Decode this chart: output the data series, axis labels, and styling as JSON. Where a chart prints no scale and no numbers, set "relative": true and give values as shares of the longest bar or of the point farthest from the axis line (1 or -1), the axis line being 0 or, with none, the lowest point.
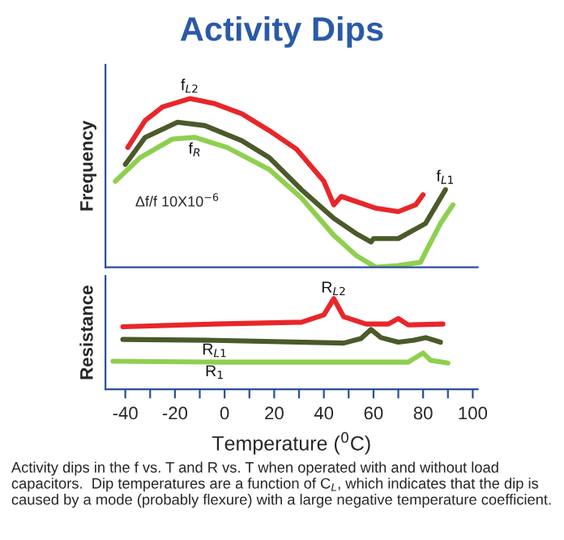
{
  "chart_data": [
    {
      "type": "line",
      "title": "Activity Dips",
      "ylabel": "Frequency",
      "relative": true,
      "legend": false,
      "grid": false,
      "tick_labels": false,
      "xlim": [
        -48,
        102
      ],
      "annotations": [
        "Δf/f 10X10$^{−6}$"
      ],
      "series": [
        {
          "name": "f$_{L2}$",
          "color": "#e8262a",
          "x": [
            -39,
            -32,
            -25,
            -14,
            -4,
            7,
            18,
            29,
            40,
            44,
            47,
            53,
            61,
            70,
            77,
            80
          ],
          "values": [
            0.71,
            0.87,
            0.95,
            1.0,
            0.97,
            0.91,
            0.81,
            0.7,
            0.51,
            0.37,
            0.42,
            0.39,
            0.35,
            0.33,
            0.37,
            0.43
          ]
        },
        {
          "name": "f$_{L1}$",
          "color": "#4a5a2a",
          "x": [
            -40,
            -32,
            -19,
            -8,
            7,
            18,
            31,
            44,
            53,
            59,
            60,
            70,
            81,
            89
          ],
          "values": [
            0.61,
            0.77,
            0.86,
            0.84,
            0.75,
            0.65,
            0.46,
            0.29,
            0.2,
            0.15,
            0.17,
            0.17,
            0.26,
            0.46
          ]
        },
        {
          "name": "f$_{R}$",
          "color": "#8fcf50",
          "x": [
            -44,
            -34,
            -21,
            -12,
            1,
            18,
            31,
            44,
            53,
            61,
            70,
            79,
            81,
            87,
            92
          ],
          "values": [
            0.51,
            0.65,
            0.76,
            0.77,
            0.71,
            0.58,
            0.41,
            0.19,
            0.07,
            0.0,
            0.01,
            0.03,
            0.09,
            0.26,
            0.37
          ]
        }
      ]
    },
    {
      "type": "line",
      "xlabel": "Temperature ($^{0}$C)",
      "ylabel": "Resistance",
      "relative": true,
      "legend": false,
      "grid": false,
      "tick_labels": "x",
      "xlim": [
        -48,
        102
      ],
      "xticks": [
        -40,
        {
          "value": -30,
          "label": null
        },
        -20,
        {
          "value": -10,
          "label": null
        },
        0,
        {
          "value": 10,
          "label": null
        },
        20,
        {
          "value": 30,
          "label": null
        },
        40,
        {
          "value": 50,
          "label": null
        },
        60,
        {
          "value": 70,
          "label": null
        },
        80,
        {
          "value": 90,
          "label": null
        },
        100
      ],
      "annotations": [
        "Activity dips in the f vs. T and R vs. T when operated with and without load capacitors.  Dip temperatures are a function of C$_{L}$, which indicates that the dip is caused by a mode (probably flexure) with a large negative temperature coefficient."
      ],
      "series": [
        {
          "name": "R$_{L2}$",
          "color": "#e8262a",
          "x": [
            -41,
            -4,
            31,
            40,
            44,
            48,
            57,
            66,
            70,
            74,
            88
          ],
          "values": [
            0.69,
            0.72,
            0.74,
            0.82,
            1.0,
            0.8,
            0.72,
            0.72,
            0.78,
            0.71,
            0.72
          ]
        },
        {
          "name": "R$_{L1}$",
          "color": "#4a5a2a",
          "x": [
            -41,
            -4,
            48,
            55,
            59,
            63,
            70,
            76,
            81,
            87
          ],
          "values": [
            0.55,
            0.54,
            0.51,
            0.56,
            0.66,
            0.57,
            0.52,
            0.54,
            0.57,
            0.52
          ]
        },
        {
          "name": "R$_{1}$",
          "color": "#8fcf50",
          "x": [
            -45,
            -4,
            74,
            80,
            83,
            90
          ],
          "values": [
            0.31,
            0.3,
            0.3,
            0.4,
            0.32,
            0.29
          ]
        }
      ]
    }
  ]
}
